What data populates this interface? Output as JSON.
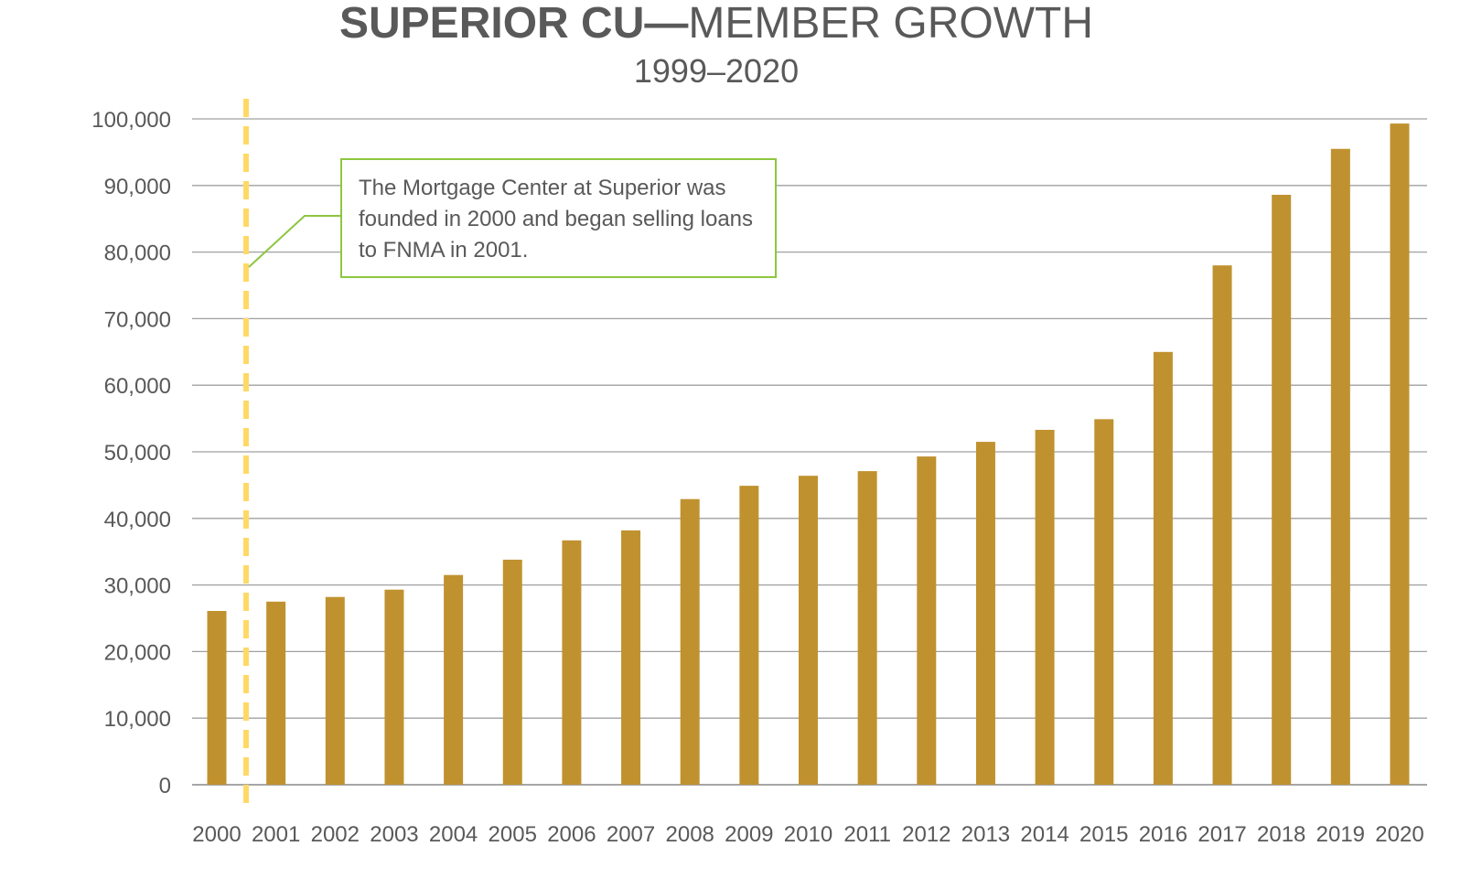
{
  "chart_data": {
    "type": "bar",
    "title_bold": "SUPERIOR CU—",
    "title_rest": "MEMBER GROWTH",
    "subtitle": "1999–2020",
    "xlabel": "",
    "ylabel": "",
    "ylim": [
      0,
      100000
    ],
    "yticks": [
      0,
      10000,
      20000,
      30000,
      40000,
      50000,
      60000,
      70000,
      80000,
      90000,
      100000
    ],
    "ytick_labels": [
      "0",
      "10,000",
      "20,000",
      "30,000",
      "40,000",
      "50,000",
      "60,000",
      "70,000",
      "80,000",
      "90,000",
      "100,000"
    ],
    "grid": true,
    "categories": [
      "2000",
      "2001",
      "2002",
      "2003",
      "2004",
      "2005",
      "2006",
      "2007",
      "2008",
      "2009",
      "2010",
      "2011",
      "2012",
      "2013",
      "2014",
      "2015",
      "2016",
      "2017",
      "2018",
      "2019",
      "2020"
    ],
    "values": [
      26100,
      27500,
      28200,
      29300,
      31500,
      33800,
      36700,
      38200,
      42900,
      44900,
      46400,
      47100,
      49300,
      51500,
      53300,
      54900,
      65000,
      78000,
      88600,
      95500,
      99300
    ],
    "bar_color": "#c0922f",
    "marker_line": {
      "between": [
        "2000",
        "2001"
      ],
      "color": "#ffd966",
      "style": "dashed"
    },
    "annotation": {
      "text": "The Mortgage Center at Superior was founded in 2000 and began selling loans to FNMA in 2001.",
      "border_color": "#8dc63f"
    }
  }
}
